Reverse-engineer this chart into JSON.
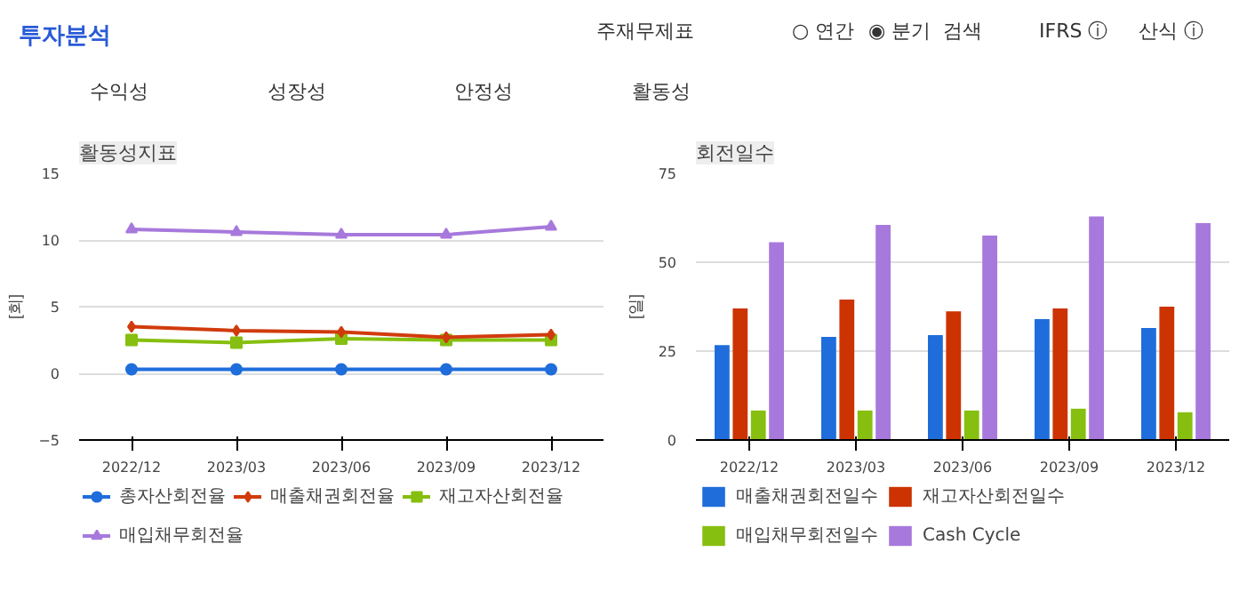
{
  "chart_data": [
    {
      "type": "other",
      "title": "투자분석",
      "annotations": [
        "주재무제표",
        "○ 연간",
        "◉ 분기",
        "검색",
        "IFRS ⓘ",
        "산식 ⓘ",
        "수익성",
        "성장성",
        "안정성",
        "활동성"
      ]
    },
    {
      "type": "line",
      "title": "활동성지표",
      "ylabel": "[회]",
      "categories": [
        "2022/12",
        "2023/03",
        "2023/06",
        "2023/09",
        "2023/12"
      ],
      "ylim": [
        -5,
        15
      ],
      "yticks": [
        -5,
        0,
        5,
        10,
        15
      ],
      "grid": "y",
      "legend": "bottom",
      "series": [
        {
          "name": "총자산회전율",
          "color": "#1f6ddb",
          "marker": "circle",
          "values": [
            0.3,
            0.3,
            0.3,
            0.3,
            0.3
          ]
        },
        {
          "name": "매출채권회전율",
          "color": "#d13b0c",
          "marker": "diamond",
          "values": [
            3.5,
            3.2,
            3.1,
            2.7,
            2.9
          ]
        },
        {
          "name": "재고자산회전율",
          "color": "#86bf0f",
          "marker": "square",
          "values": [
            2.5,
            2.3,
            2.6,
            2.5,
            2.5
          ]
        },
        {
          "name": "매입채무회전율",
          "color": "#a779dc",
          "marker": "triangle",
          "values": [
            10.8,
            10.6,
            10.4,
            10.4,
            11.0
          ]
        }
      ]
    },
    {
      "type": "bar",
      "title": "회전일수",
      "ylabel": "[일]",
      "categories": [
        "2022/12",
        "2023/03",
        "2023/06",
        "2023/09",
        "2023/12"
      ],
      "ylim": [
        0,
        75
      ],
      "yticks": [
        0,
        25,
        50,
        75
      ],
      "grid": "y",
      "legend": "bottom",
      "series": [
        {
          "name": "매출채권회전일수",
          "color": "#1f6ddb",
          "values": [
            26.7,
            29.0,
            29.5,
            34.0,
            31.5
          ]
        },
        {
          "name": "재고자산회전일수",
          "color": "#cc3300",
          "values": [
            37.0,
            39.5,
            36.2,
            37.0,
            37.5
          ]
        },
        {
          "name": "매입채무회전일수",
          "color": "#86bf0f",
          "values": [
            8.3,
            8.3,
            8.3,
            8.8,
            7.8
          ]
        },
        {
          "name": "Cash Cycle",
          "color": "#a779dc",
          "values": [
            55.6,
            60.5,
            57.5,
            62.9,
            61.0
          ]
        }
      ]
    }
  ]
}
